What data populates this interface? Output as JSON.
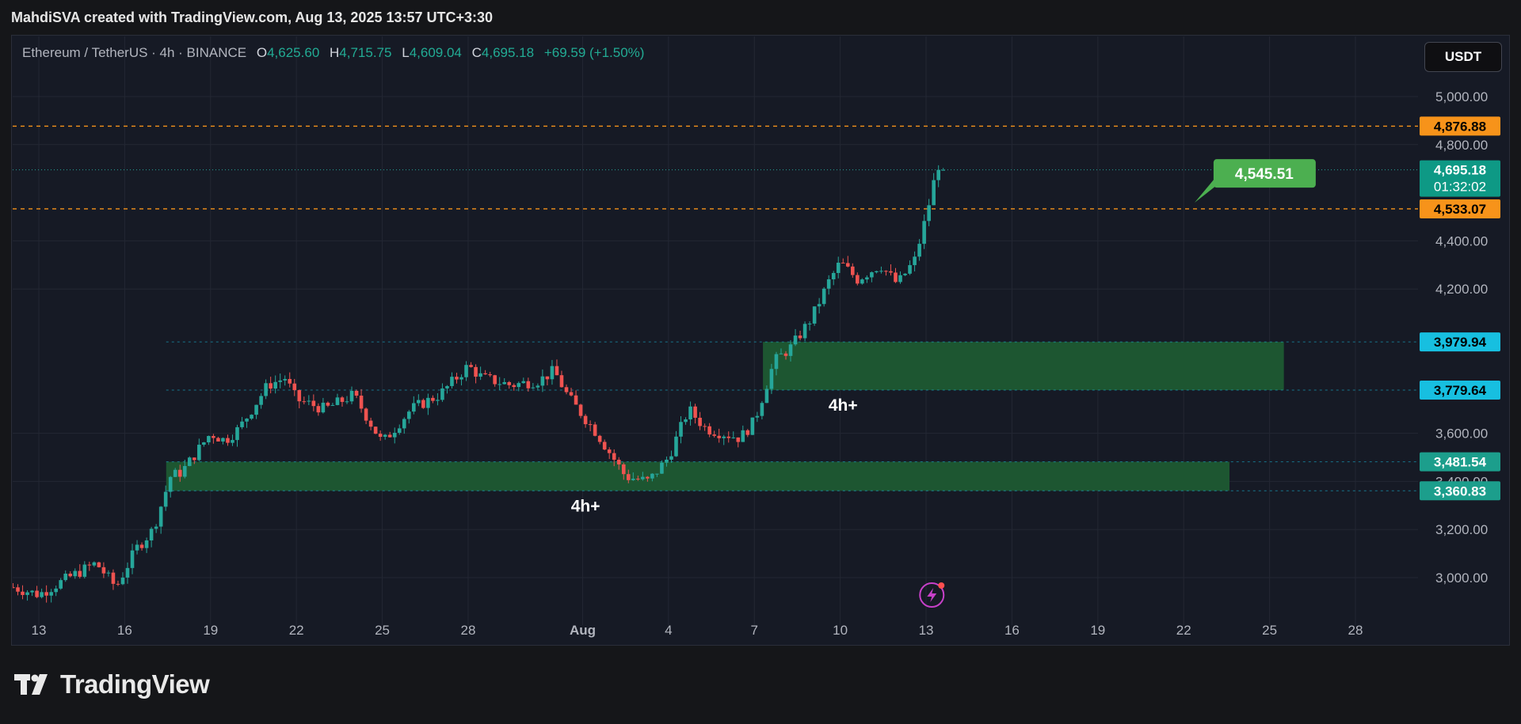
{
  "header": {
    "attribution": "MahdiSVA created with TradingView.com, Aug 13, 2025 13:57 UTC+3:30"
  },
  "legend": {
    "symbol": "Ethereum / TetherUS · 4h · BINANCE",
    "o_label": "O",
    "o_value": "4,625.60",
    "h_label": "H",
    "h_value": "4,715.75",
    "l_label": "L",
    "l_value": "4,609.04",
    "c_label": "C",
    "c_value": "4,695.18",
    "change": "+69.59 (+1.50%)"
  },
  "currency_button": "USDT",
  "brand": {
    "name": "TradingView"
  },
  "colors": {
    "up": "#26a69a",
    "down": "#ef5350",
    "zone": "#1e5a32",
    "level": "#f7931a",
    "accent_cyan": "#17bfe0",
    "callout": "#4caf50"
  },
  "chart_data": {
    "type": "candlestick",
    "timeframe": "4h",
    "ylim": [
      2880,
      5180
    ],
    "y_ticks": [
      3000,
      3200,
      3400,
      3600,
      4200,
      4400,
      4800,
      5000
    ],
    "y_tick_labels": [
      "3,000.00",
      "3,200.00",
      "3,400.00",
      "3,600.00",
      "4,200.00",
      "4,400.00",
      "4,800.00",
      "5,000.00"
    ],
    "x_ticks": [
      {
        "label": "13",
        "day": 0
      },
      {
        "label": "16",
        "day": 3
      },
      {
        "label": "19",
        "day": 6
      },
      {
        "label": "22",
        "day": 9
      },
      {
        "label": "25",
        "day": 12
      },
      {
        "label": "28",
        "day": 15
      },
      {
        "label": "Aug",
        "day": 19
      },
      {
        "label": "4",
        "day": 22
      },
      {
        "label": "7",
        "day": 25
      },
      {
        "label": "10",
        "day": 28
      },
      {
        "label": "13",
        "day": 31
      },
      {
        "label": "16",
        "day": 34
      },
      {
        "label": "19",
        "day": 37
      },
      {
        "label": "22",
        "day": 40
      },
      {
        "label": "25",
        "day": 43
      },
      {
        "label": "28",
        "day": 46
      }
    ],
    "price_path": [
      [
        -0.9,
        2960
      ],
      [
        0,
        2930
      ],
      [
        1.2,
        3010
      ],
      [
        2,
        3060
      ],
      [
        2.7,
        2960
      ],
      [
        3.4,
        3120
      ],
      [
        4,
        3200
      ],
      [
        4.6,
        3420
      ],
      [
        5,
        3440
      ],
      [
        5.5,
        3520
      ],
      [
        6,
        3600
      ],
      [
        6.5,
        3570
      ],
      [
        7,
        3620
      ],
      [
        8,
        3800
      ],
      [
        8.6,
        3830
      ],
      [
        9,
        3740
      ],
      [
        10,
        3700
      ],
      [
        11,
        3760
      ],
      [
        12,
        3560
      ],
      [
        13,
        3700
      ],
      [
        14,
        3760
      ],
      [
        15,
        3880
      ],
      [
        15.5,
        3830
      ],
      [
        16.5,
        3800
      ],
      [
        17.5,
        3820
      ],
      [
        18,
        3860
      ],
      [
        18.5,
        3750
      ],
      [
        19.5,
        3600
      ],
      [
        20.5,
        3420
      ],
      [
        21.3,
        3400
      ],
      [
        22,
        3500
      ],
      [
        22.7,
        3700
      ],
      [
        23.3,
        3620
      ],
      [
        24.5,
        3580
      ],
      [
        25,
        3650
      ],
      [
        25.7,
        3900
      ],
      [
        26.3,
        3960
      ],
      [
        27,
        4080
      ],
      [
        27.6,
        4230
      ],
      [
        28,
        4310
      ],
      [
        28.6,
        4240
      ],
      [
        29.4,
        4300
      ],
      [
        30,
        4220
      ],
      [
        30.6,
        4320
      ],
      [
        31,
        4500
      ],
      [
        31.3,
        4660
      ],
      [
        31.6,
        4695
      ]
    ],
    "zones": [
      {
        "label": "4h+",
        "top": 3481.54,
        "bottom": 3360.83,
        "start_day": 4.45,
        "end_day": 41.6
      },
      {
        "label": "4h+",
        "top": 3979.94,
        "bottom": 3779.64,
        "start_day": 25.3,
        "end_day": 43.5
      }
    ],
    "levels": [
      {
        "value": 4876.88,
        "label": "4,876.88"
      },
      {
        "value": 4533.07,
        "label": "4,533.07"
      }
    ],
    "zone_price_labels": [
      {
        "value": 3979.94,
        "label": "3,979.94"
      },
      {
        "value": 3779.64,
        "label": "3,779.64"
      },
      {
        "value": 3481.54,
        "label": "3,481.54"
      },
      {
        "value": 3360.83,
        "label": "3,360.83"
      }
    ],
    "last_price": {
      "value": 4695.18,
      "label": "4,695.18",
      "countdown": "01:32:02"
    },
    "callout": {
      "text": "4,545.51",
      "day": 40.6,
      "value": 4545.51
    },
    "event_icon": "lightning-icon"
  }
}
